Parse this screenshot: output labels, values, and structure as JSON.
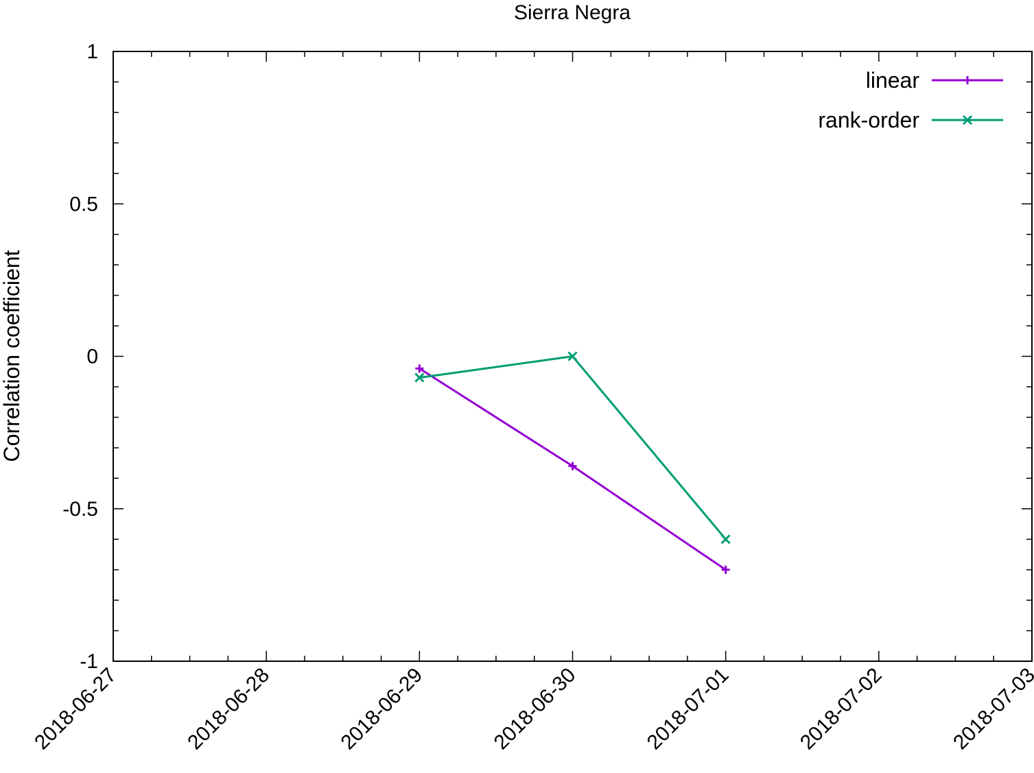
{
  "chart_data": {
    "type": "line",
    "title": "Sierra Negra",
    "xlabel": "",
    "ylabel": "Correlation coefficient",
    "x_type": "date",
    "xlim": [
      "2018-06-27",
      "2018-07-03"
    ],
    "ylim": [
      -1,
      1
    ],
    "x_ticks": [
      "2018-06-27",
      "2018-06-28",
      "2018-06-29",
      "2018-06-30",
      "2018-07-01",
      "2018-07-02",
      "2018-07-03"
    ],
    "y_ticks": [
      {
        "value": -1,
        "label": "-1"
      },
      {
        "value": -0.5,
        "label": "-0.5"
      },
      {
        "value": 0,
        "label": "0"
      },
      {
        "value": 0.5,
        "label": "0.5"
      },
      {
        "value": 1,
        "label": "1"
      }
    ],
    "grid": false,
    "legend_position": "top-right",
    "series": [
      {
        "name": "linear",
        "color": "#9400d3",
        "marker": "plus",
        "x": [
          "2018-06-29",
          "2018-06-30",
          "2018-07-01"
        ],
        "values": [
          -0.04,
          -0.36,
          -0.7
        ]
      },
      {
        "name": "rank-order",
        "color": "#009e73",
        "marker": "cross",
        "x": [
          "2018-06-29",
          "2018-06-30",
          "2018-07-01"
        ],
        "values": [
          -0.07,
          0.0,
          -0.6
        ]
      }
    ]
  }
}
